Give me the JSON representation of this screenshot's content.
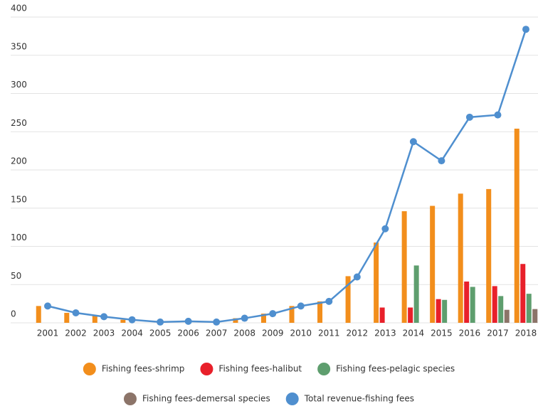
{
  "chart_data": {
    "type": "bar_line",
    "categories": [
      "2001",
      "2002",
      "2003",
      "2004",
      "2005",
      "2006",
      "2007",
      "2008",
      "2009",
      "2010",
      "2011",
      "2012",
      "2013",
      "2014",
      "2015",
      "2016",
      "2017",
      "2018"
    ],
    "series": [
      {
        "name": "Fishing fees-shrimp",
        "color": "#f28e1c",
        "type": "bar",
        "values": [
          22,
          13,
          9,
          4,
          0,
          0,
          0,
          6,
          12,
          22,
          28,
          61,
          105,
          146,
          153,
          169,
          175,
          254
        ]
      },
      {
        "name": "Fishing fees-halibut",
        "color": "#e8202a",
        "type": "bar",
        "values": [
          0,
          0,
          0,
          0,
          0,
          0,
          0,
          0,
          0,
          0,
          0,
          0,
          20,
          20,
          31,
          54,
          48,
          77
        ]
      },
      {
        "name": "Fishing fees-pelagic species",
        "color": "#5e9e6e",
        "type": "bar",
        "values": [
          0,
          0,
          0,
          0,
          0,
          0,
          0,
          0,
          0,
          0,
          0,
          0,
          0,
          75,
          30,
          47,
          35,
          38
        ]
      },
      {
        "name": "Fishing fees-demersal species",
        "color": "#8c7469",
        "type": "bar",
        "values": [
          0,
          0,
          0,
          0,
          0,
          0,
          0,
          0,
          0,
          0,
          0,
          0,
          0,
          0,
          0,
          0,
          17,
          18
        ]
      },
      {
        "name": "Total revenue-fishing fees",
        "color": "#4f8fcf",
        "type": "line",
        "values": [
          22,
          13,
          8,
          4,
          1,
          2,
          1,
          6,
          12,
          22,
          28,
          60,
          123,
          237,
          212,
          269,
          272,
          384
        ]
      }
    ],
    "ylim": [
      0,
      400
    ],
    "yticks": [
      0,
      50,
      100,
      150,
      200,
      250,
      300,
      350,
      400
    ],
    "grid": true
  }
}
